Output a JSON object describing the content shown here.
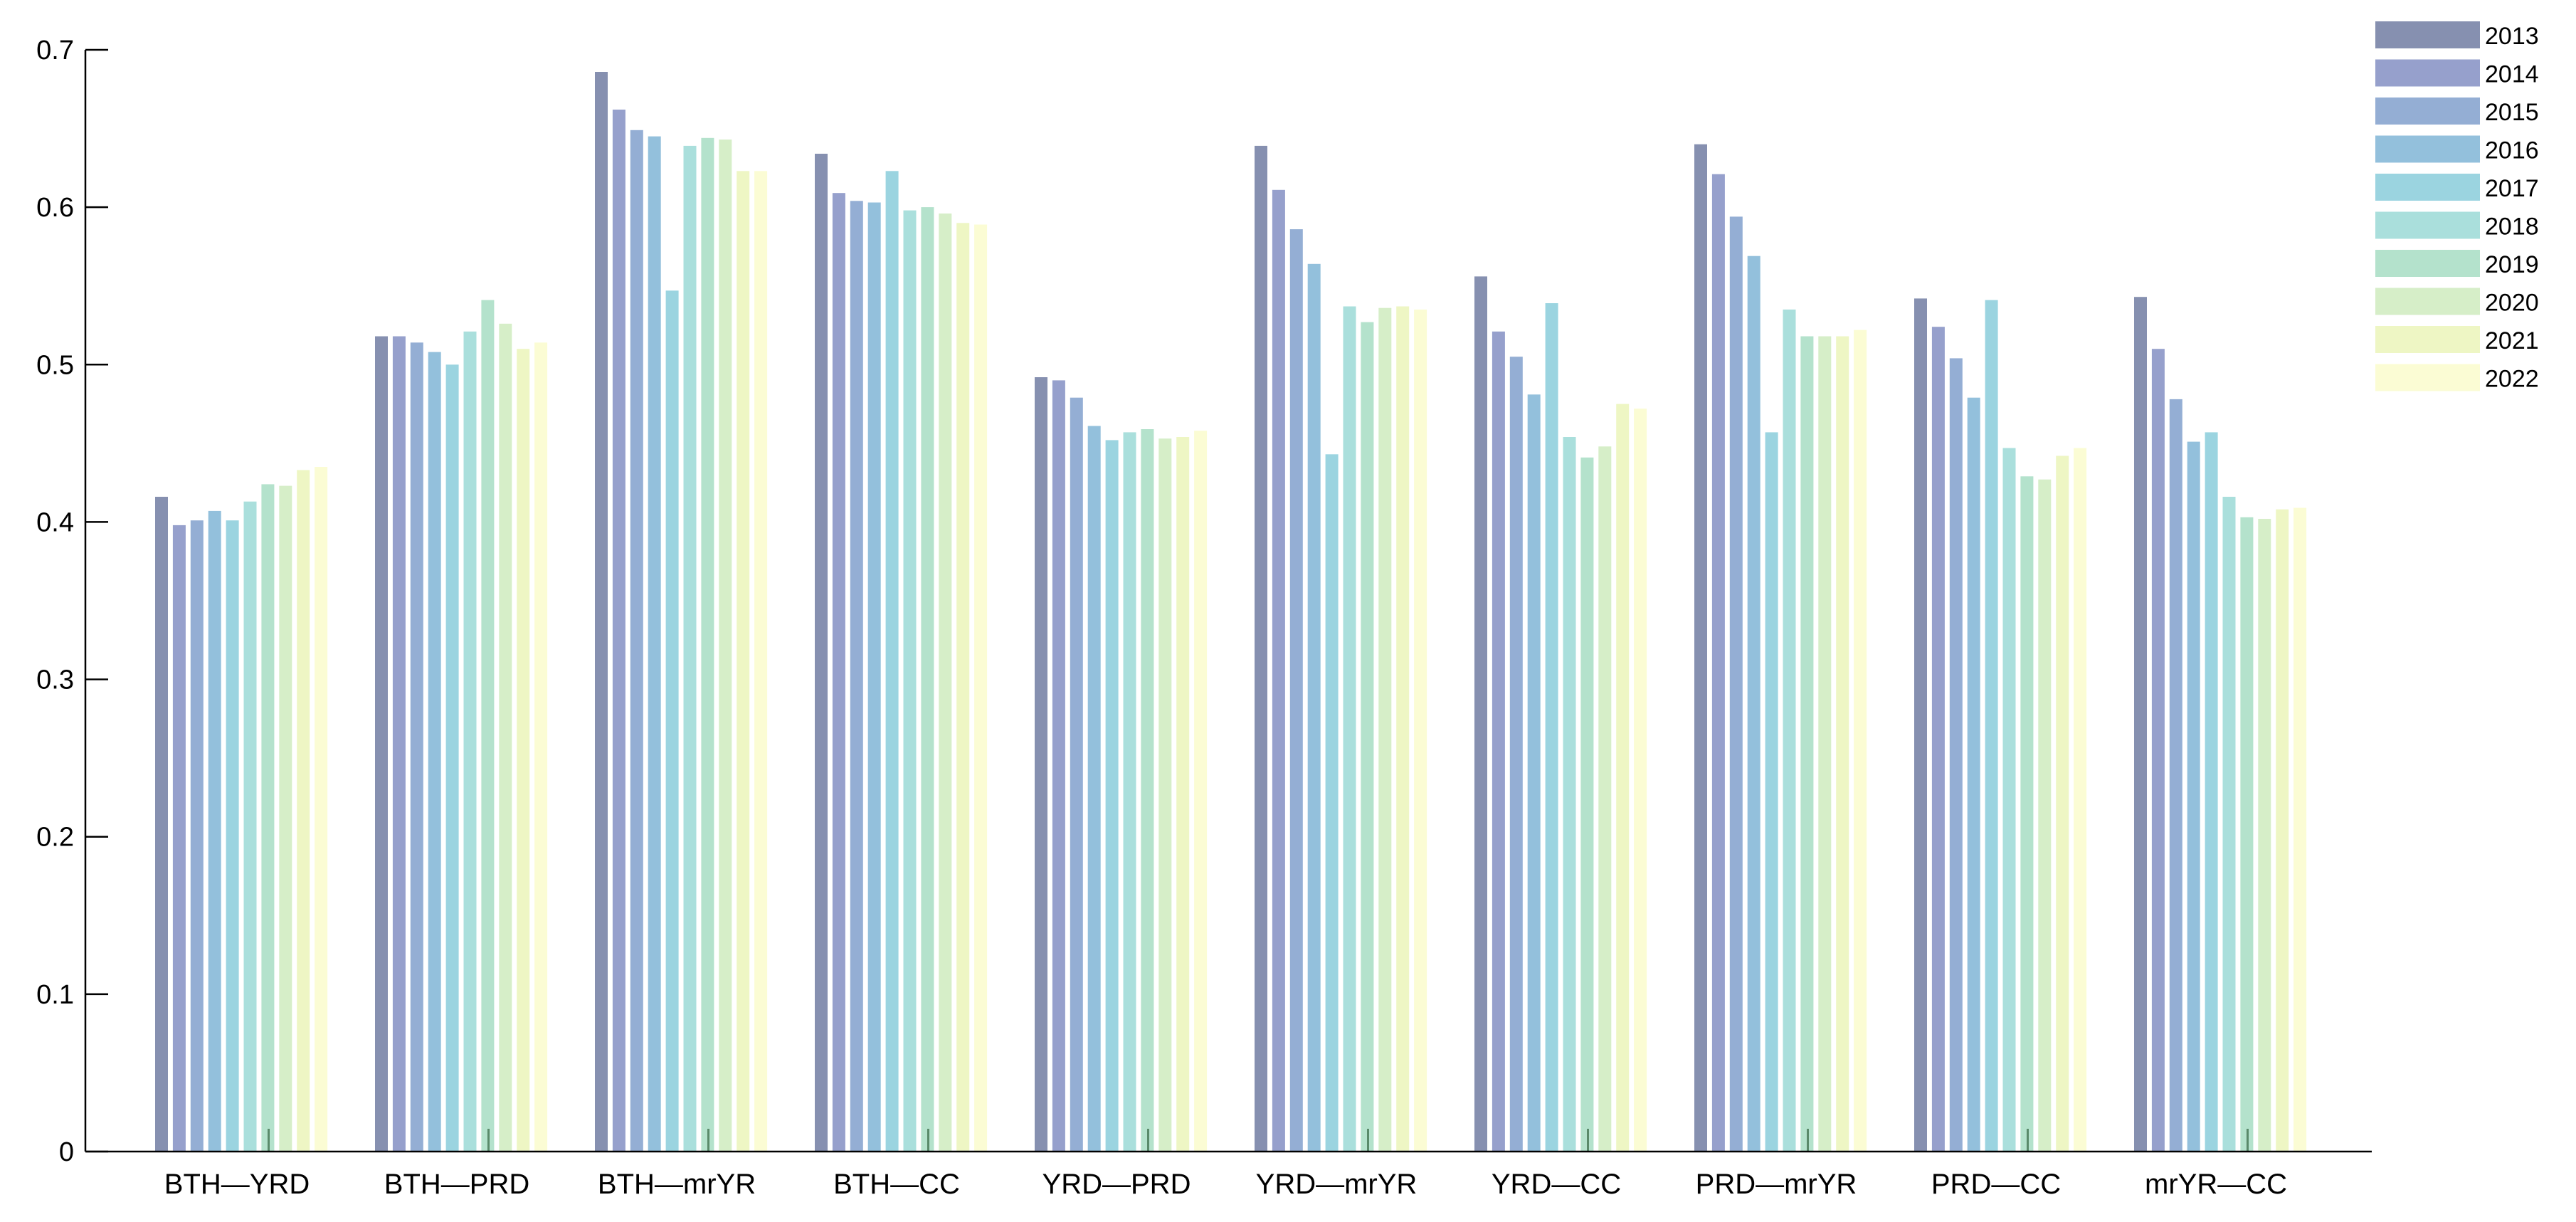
{
  "chart_data": {
    "type": "bar",
    "title": "",
    "xlabel": "",
    "ylabel": "",
    "ylim": [
      0,
      0.7
    ],
    "yticks": [
      "0",
      "0.1",
      "0.2",
      "0.3",
      "0.4",
      "0.5",
      "0.6",
      "0.7"
    ],
    "grid": false,
    "legend_position": "top-right",
    "categories": [
      "BTH—YRD",
      "BTH—PRD",
      "BTH—mrYR",
      "BTH—CC",
      "YRD—PRD",
      "YRD—mrYR",
      "YRD—CC",
      "PRD—mrYR",
      "PRD—CC",
      "mrYR—CC"
    ],
    "series": [
      {
        "name": "2013",
        "color": "#8690b0",
        "values": [
          0.416,
          0.518,
          0.686,
          0.634,
          0.492,
          0.639,
          0.556,
          0.64,
          0.542,
          0.543
        ]
      },
      {
        "name": "2014",
        "color": "#96a0cc",
        "values": [
          0.398,
          0.518,
          0.662,
          0.609,
          0.49,
          0.611,
          0.521,
          0.621,
          0.524,
          0.51
        ]
      },
      {
        "name": "2015",
        "color": "#94aed4",
        "values": [
          0.401,
          0.514,
          0.649,
          0.604,
          0.479,
          0.586,
          0.505,
          0.594,
          0.504,
          0.478
        ]
      },
      {
        "name": "2016",
        "color": "#93c0dc",
        "values": [
          0.407,
          0.508,
          0.645,
          0.603,
          0.461,
          0.564,
          0.481,
          0.569,
          0.479,
          0.451
        ]
      },
      {
        "name": "2017",
        "color": "#9bd4e0",
        "values": [
          0.401,
          0.5,
          0.547,
          0.623,
          0.452,
          0.443,
          0.539,
          0.457,
          0.541,
          0.457
        ]
      },
      {
        "name": "2018",
        "color": "#aadfdc",
        "values": [
          0.413,
          0.521,
          0.639,
          0.598,
          0.457,
          0.537,
          0.454,
          0.535,
          0.447,
          0.416
        ]
      },
      {
        "name": "2019",
        "color": "#b4e2cc",
        "values": [
          0.424,
          0.541,
          0.644,
          0.6,
          0.459,
          0.527,
          0.441,
          0.518,
          0.429,
          0.403
        ]
      },
      {
        "name": "2020",
        "color": "#d6eec8",
        "values": [
          0.423,
          0.526,
          0.643,
          0.596,
          0.453,
          0.536,
          0.448,
          0.518,
          0.427,
          0.402
        ]
      },
      {
        "name": "2021",
        "color": "#eef6c4",
        "values": [
          0.433,
          0.51,
          0.623,
          0.59,
          0.454,
          0.537,
          0.475,
          0.518,
          0.442,
          0.408
        ]
      },
      {
        "name": "2022",
        "color": "#fbfcd4",
        "values": [
          0.435,
          0.514,
          0.623,
          0.589,
          0.458,
          0.535,
          0.472,
          0.522,
          0.447,
          0.409
        ]
      }
    ]
  }
}
